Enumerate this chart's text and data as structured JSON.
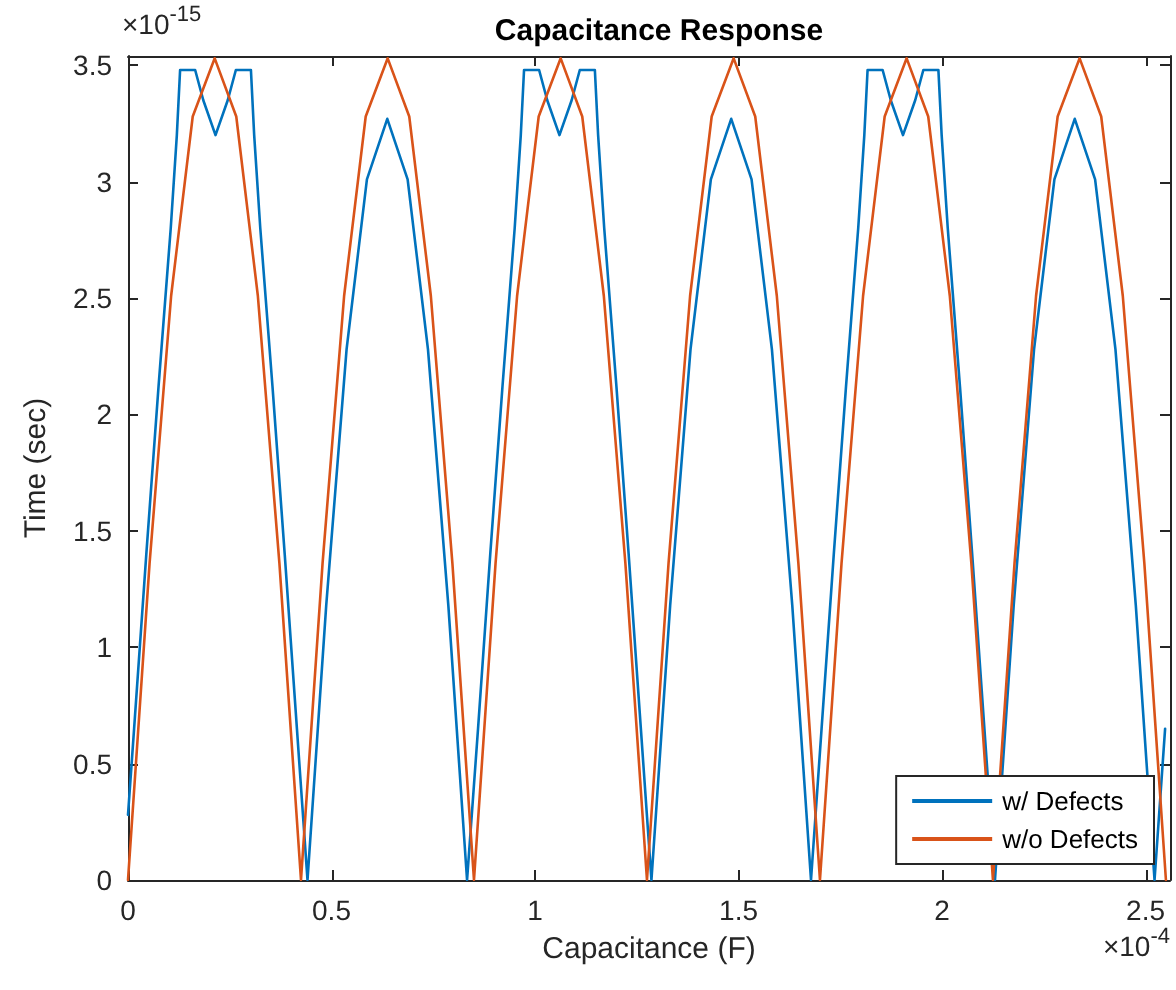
{
  "chart_data": {
    "type": "line",
    "title": "Capacitance Response",
    "xlabel": "Capacitance (F)",
    "ylabel": "Time (sec)",
    "annotations": [
      "×10$^{-15}$",
      "×10$^{-4}$"
    ],
    "xlim": [
      0,
      2.56
    ],
    "xticks": [
      0,
      0.5,
      1,
      1.5,
      2,
      2.5
    ],
    "ylim": [
      0,
      3.54
    ],
    "yticks": [
      0,
      0.5,
      1,
      1.5,
      2,
      2.5,
      3,
      3.5
    ],
    "grid": false,
    "legend": "bottom right",
    "marker": "none",
    "line_style": "solid",
    "series": [
      {
        "name": "w/ Defects",
        "color": "#0072bd",
        "x": [
          0,
          0.015,
          0.045,
          0.075,
          0.105,
          0.12,
          0.128,
          0.165,
          0.185,
          0.215,
          0.245,
          0.265,
          0.302,
          0.31,
          0.325,
          0.355,
          0.385,
          0.415,
          0.441,
          0.487,
          0.537,
          0.587,
          0.637,
          0.687,
          0.737,
          0.787,
          0.833,
          0.86,
          0.89,
          0.92,
          0.95,
          0.965,
          0.973,
          1.01,
          1.03,
          1.06,
          1.09,
          1.11,
          1.147,
          1.155,
          1.17,
          1.2,
          1.23,
          1.26,
          1.286,
          1.332,
          1.382,
          1.432,
          1.482,
          1.532,
          1.582,
          1.632,
          1.678,
          1.704,
          1.734,
          1.764,
          1.794,
          1.809,
          1.817,
          1.854,
          1.874,
          1.904,
          1.934,
          1.954,
          1.991,
          1.999,
          2.014,
          2.044,
          2.074,
          2.104,
          2.13,
          2.176,
          2.226,
          2.276,
          2.326,
          2.376,
          2.426,
          2.476,
          2.522,
          2.548
        ],
        "values": [
          0.28,
          0.65,
          1.4,
          2.12,
          2.8,
          3.2,
          3.48,
          3.48,
          3.35,
          3.2,
          3.35,
          3.48,
          3.48,
          3.2,
          2.8,
          2.12,
          1.4,
          0.65,
          0,
          1.18,
          2.28,
          3.01,
          3.27,
          3.01,
          2.28,
          1.18,
          0,
          0.65,
          1.4,
          2.12,
          2.8,
          3.2,
          3.48,
          3.48,
          3.35,
          3.2,
          3.35,
          3.48,
          3.48,
          3.2,
          2.8,
          2.12,
          1.4,
          0.65,
          0,
          1.18,
          2.28,
          3.01,
          3.27,
          3.01,
          2.28,
          1.18,
          0,
          0.65,
          1.4,
          2.12,
          2.8,
          3.2,
          3.48,
          3.48,
          3.35,
          3.2,
          3.35,
          3.48,
          3.48,
          3.2,
          2.8,
          2.12,
          1.4,
          0.65,
          0,
          1.18,
          2.28,
          3.01,
          3.27,
          3.01,
          2.28,
          1.18,
          0,
          0.65
        ]
      },
      {
        "name": "w/o Defects",
        "color": "#d95319",
        "x": [
          0,
          0.053,
          0.106,
          0.159,
          0.213,
          0.266,
          0.319,
          0.372,
          0.425,
          0.478,
          0.531,
          0.584,
          0.638,
          0.691,
          0.744,
          0.797,
          0.85,
          0.903,
          0.956,
          1.009,
          1.063,
          1.116,
          1.169,
          1.222,
          1.275,
          1.328,
          1.381,
          1.434,
          1.488,
          1.541,
          1.594,
          1.647,
          1.7,
          1.753,
          1.806,
          1.859,
          1.913,
          1.966,
          2.019,
          2.072,
          2.125,
          2.178,
          2.231,
          2.284,
          2.338,
          2.391,
          2.444,
          2.497,
          2.55
        ],
        "values": [
          0,
          1.36,
          2.51,
          3.28,
          3.53,
          3.28,
          2.51,
          1.36,
          0,
          1.36,
          2.51,
          3.28,
          3.53,
          3.28,
          2.51,
          1.36,
          0,
          1.36,
          2.51,
          3.28,
          3.53,
          3.28,
          2.51,
          1.36,
          0,
          1.36,
          2.51,
          3.28,
          3.53,
          3.28,
          2.51,
          1.36,
          0,
          1.36,
          2.51,
          3.28,
          3.53,
          3.28,
          2.51,
          1.36,
          0,
          1.36,
          2.51,
          3.28,
          3.53,
          3.28,
          2.51,
          1.36,
          0
        ]
      }
    ]
  }
}
